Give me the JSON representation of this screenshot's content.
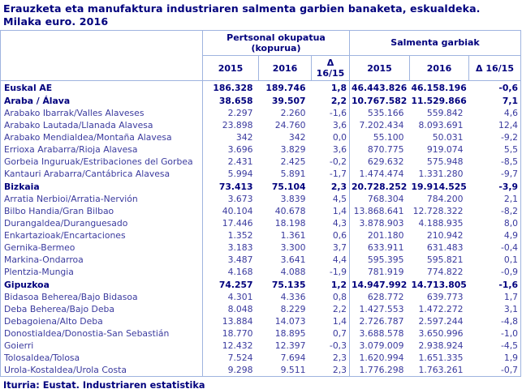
{
  "title": {
    "line1": "Erauzketa eta manufaktura industriaren salmenta garbien banaketa, eskualdeka.",
    "line2": "Milaka euro. 2016"
  },
  "colors": {
    "navy_text": "#00007d",
    "body_text": "#3a3a9e",
    "table_border": "#9fb4df",
    "background": "#ffffff"
  },
  "table": {
    "region_header": "",
    "group_headers": [
      {
        "label": "Pertsonal okupatua (kopurua)"
      },
      {
        "label": "Salmenta garbiak"
      }
    ],
    "year_headers": [
      "2015",
      "2016",
      "Δ 16/15",
      "2015",
      "2016",
      "Δ 16/15"
    ],
    "rows": [
      {
        "label": "Euskal AE",
        "bold": true,
        "values": [
          "186.328",
          "189.746",
          "1,8",
          "46.443.826",
          "46.158.196",
          "-0,6"
        ]
      },
      {
        "label": "Araba / Álava",
        "bold": true,
        "values": [
          "38.658",
          "39.507",
          "2,2",
          "10.767.582",
          "11.529.866",
          "7,1"
        ]
      },
      {
        "label": "Arabako Ibarrak/Valles Alaveses",
        "bold": false,
        "values": [
          "2.297",
          "2.260",
          "-1,6",
          "535.166",
          "559.842",
          "4,6"
        ]
      },
      {
        "label": "Arabako Lautada/Llanada Alavesa",
        "bold": false,
        "values": [
          "23.898",
          "24.760",
          "3,6",
          "7.202.434",
          "8.093.691",
          "12,4"
        ]
      },
      {
        "label": "Arabako Mendialdea/Montaña Alavesa",
        "bold": false,
        "values": [
          "342",
          "342",
          "0,0",
          "55.100",
          "50.031",
          "-9,2"
        ]
      },
      {
        "label": "Errioxa Arabarra/Rioja Alavesa",
        "bold": false,
        "values": [
          "3.696",
          "3.829",
          "3,6",
          "870.775",
          "919.074",
          "5,5"
        ]
      },
      {
        "label": "Gorbeia Inguruak/Estribaciones del Gorbea",
        "bold": false,
        "values": [
          "2.431",
          "2.425",
          "-0,2",
          "629.632",
          "575.948",
          "-8,5"
        ]
      },
      {
        "label": "Kantauri Arabarra/Cantábrica Alavesa",
        "bold": false,
        "values": [
          "5.994",
          "5.891",
          "-1,7",
          "1.474.474",
          "1.331.280",
          "-9,7"
        ]
      },
      {
        "label": "Bizkaia",
        "bold": true,
        "values": [
          "73.413",
          "75.104",
          "2,3",
          "20.728.252",
          "19.914.525",
          "-3,9"
        ]
      },
      {
        "label": "Arratia Nerbioi/Arratia-Nervión",
        "bold": false,
        "values": [
          "3.673",
          "3.839",
          "4,5",
          "768.304",
          "784.200",
          "2,1"
        ]
      },
      {
        "label": "Bilbo Handia/Gran Bilbao",
        "bold": false,
        "values": [
          "40.104",
          "40.678",
          "1,4",
          "13.868.641",
          "12.728.322",
          "-8,2"
        ]
      },
      {
        "label": "Durangaldea/Duranguesado",
        "bold": false,
        "values": [
          "17.446",
          "18.198",
          "4,3",
          "3.878.903",
          "4.188.935",
          "8,0"
        ]
      },
      {
        "label": "Enkartazioak/Encartaciones",
        "bold": false,
        "values": [
          "1.352",
          "1.361",
          "0,6",
          "201.180",
          "210.942",
          "4,9"
        ]
      },
      {
        "label": "Gernika-Bermeo",
        "bold": false,
        "values": [
          "3.183",
          "3.300",
          "3,7",
          "633.911",
          "631.483",
          "-0,4"
        ]
      },
      {
        "label": "Markina-Ondarroa",
        "bold": false,
        "values": [
          "3.487",
          "3.641",
          "4,4",
          "595.395",
          "595.821",
          "0,1"
        ]
      },
      {
        "label": "Plentzia-Mungia",
        "bold": false,
        "values": [
          "4.168",
          "4.088",
          "-1,9",
          "781.919",
          "774.822",
          "-0,9"
        ]
      },
      {
        "label": "Gipuzkoa",
        "bold": true,
        "values": [
          "74.257",
          "75.135",
          "1,2",
          "14.947.992",
          "14.713.805",
          "-1,6"
        ]
      },
      {
        "label": "Bidasoa Beherea/Bajo Bidasoa",
        "bold": false,
        "values": [
          "4.301",
          "4.336",
          "0,8",
          "628.772",
          "639.773",
          "1,7"
        ]
      },
      {
        "label": "Deba Beherea/Bajo Deba",
        "bold": false,
        "values": [
          "8.048",
          "8.229",
          "2,2",
          "1.427.553",
          "1.472.272",
          "3,1"
        ]
      },
      {
        "label": "Debagoiena/Alto Deba",
        "bold": false,
        "values": [
          "13.884",
          "14.073",
          "1,4",
          "2.726.787",
          "2.597.244",
          "-4,8"
        ]
      },
      {
        "label": "Donostialdea/Donostia-San Sebastián",
        "bold": false,
        "values": [
          "18.770",
          "18.895",
          "0,7",
          "3.688.578",
          "3.650.996",
          "-1,0"
        ]
      },
      {
        "label": "Goierri",
        "bold": false,
        "values": [
          "12.432",
          "12.397",
          "-0,3",
          "3.079.009",
          "2.938.924",
          "-4,5"
        ]
      },
      {
        "label": "Tolosaldea/Tolosa",
        "bold": false,
        "values": [
          "7.524",
          "7.694",
          "2,3",
          "1.620.994",
          "1.651.335",
          "1,9"
        ]
      },
      {
        "label": "Urola-Kostaldea/Urola Costa",
        "bold": false,
        "values": [
          "9.298",
          "9.511",
          "2,3",
          "1.776.298",
          "1.763.261",
          "-0,7"
        ]
      }
    ]
  },
  "footer": {
    "source": "Iturria: Eustat. Industriaren estatistika"
  }
}
